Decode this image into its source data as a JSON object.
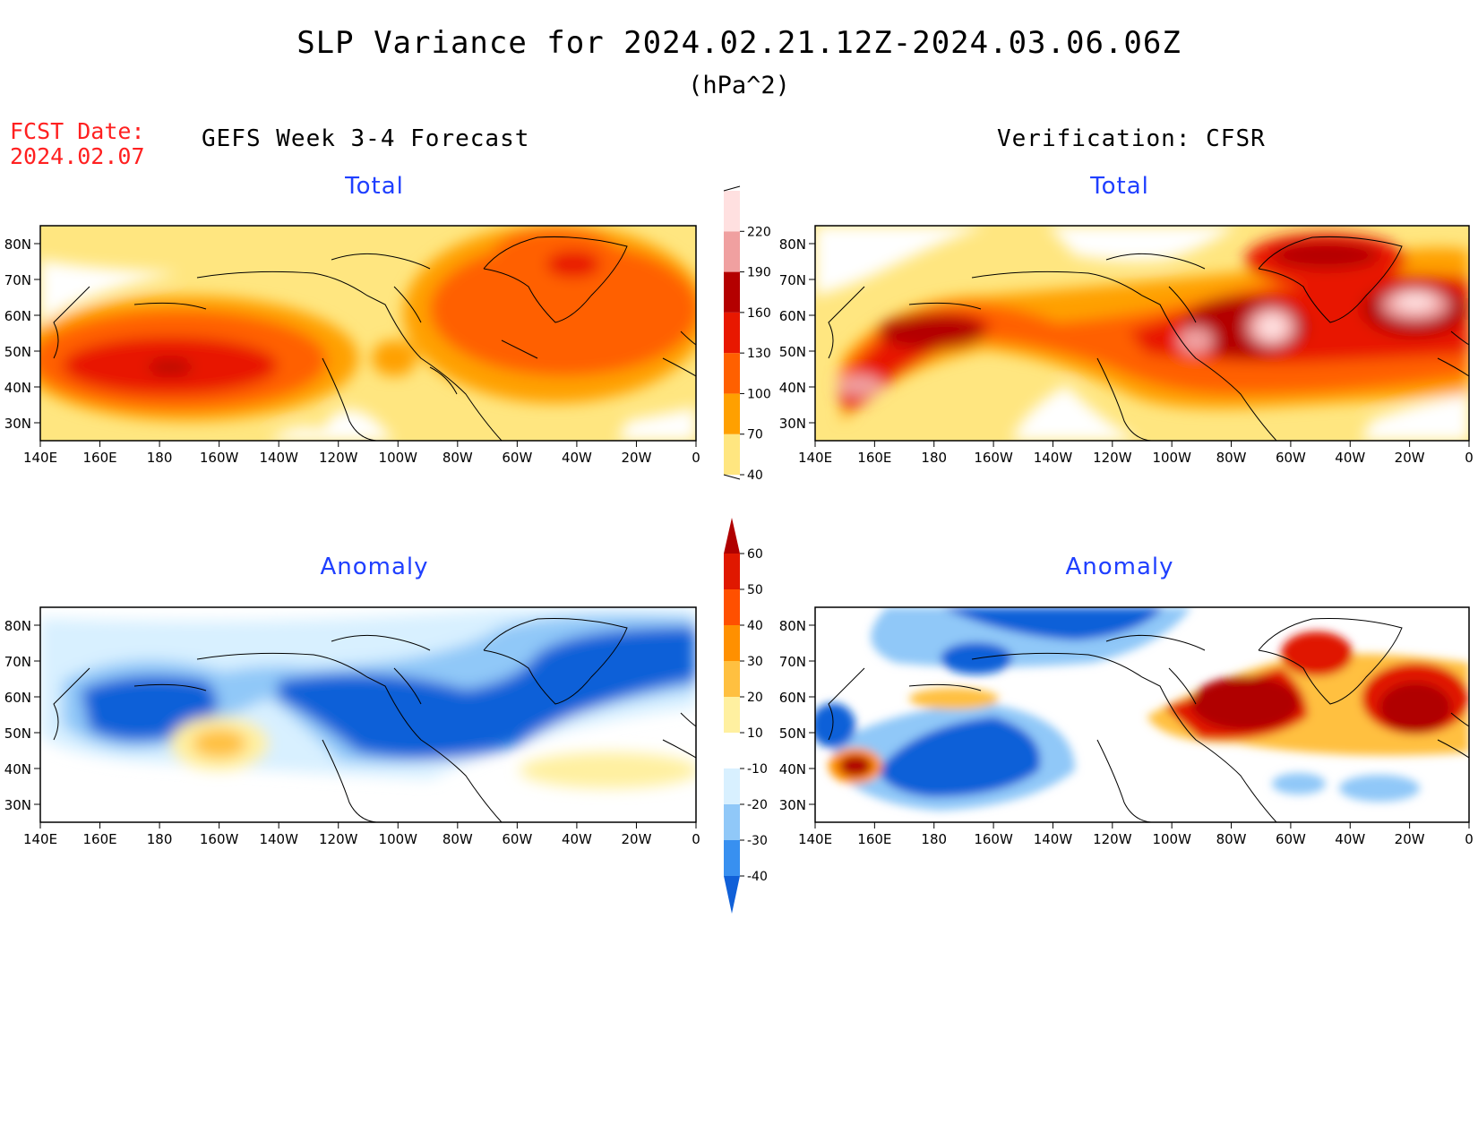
{
  "title": "SLP Variance for 2024.02.21.12Z-2024.03.06.06Z",
  "units": "(hPa^2)",
  "fcst_label": "FCST Date:",
  "fcst_date": "2024.02.07",
  "columns": {
    "left": "GEFS Week 3-4 Forecast",
    "right": "Verification: CFSR"
  },
  "panels": [
    {
      "id": "forecast-total",
      "subtitle": "Total"
    },
    {
      "id": "verification-total",
      "subtitle": "Total"
    },
    {
      "id": "forecast-anomaly",
      "subtitle": "Anomaly"
    },
    {
      "id": "verification-anomaly",
      "subtitle": "Anomaly"
    }
  ],
  "lat_labels": [
    "80N",
    "70N",
    "60N",
    "50N",
    "40N",
    "30N"
  ],
  "lon_labels": [
    "140E",
    "160E",
    "180",
    "160W",
    "140W",
    "120W",
    "100W",
    "80W",
    "60W",
    "40W",
    "20W",
    "0"
  ],
  "colorbars": {
    "total": {
      "ticks": [
        "40",
        "70",
        "100",
        "130",
        "160",
        "190",
        "220"
      ],
      "colors": [
        "#ffe680",
        "#ffa000",
        "#ff6000",
        "#e81800",
        "#b40000",
        "#f0a0a0",
        "#ffe0e0"
      ]
    },
    "anomaly": {
      "ticks": [
        "-40",
        "-30",
        "-20",
        "-10",
        "10",
        "20",
        "30",
        "40",
        "50",
        "60"
      ],
      "colors": [
        "#1060d8",
        "#3890f0",
        "#90c8f8",
        "#d8f0ff",
        "#ffffff",
        "#fff0a0",
        "#ffc040",
        "#ff9000",
        "#ff5000",
        "#e01800",
        "#b00000"
      ]
    }
  },
  "colors": {
    "fcst_text": "#ff2020",
    "subtitle_text": "#1f3fff"
  }
}
